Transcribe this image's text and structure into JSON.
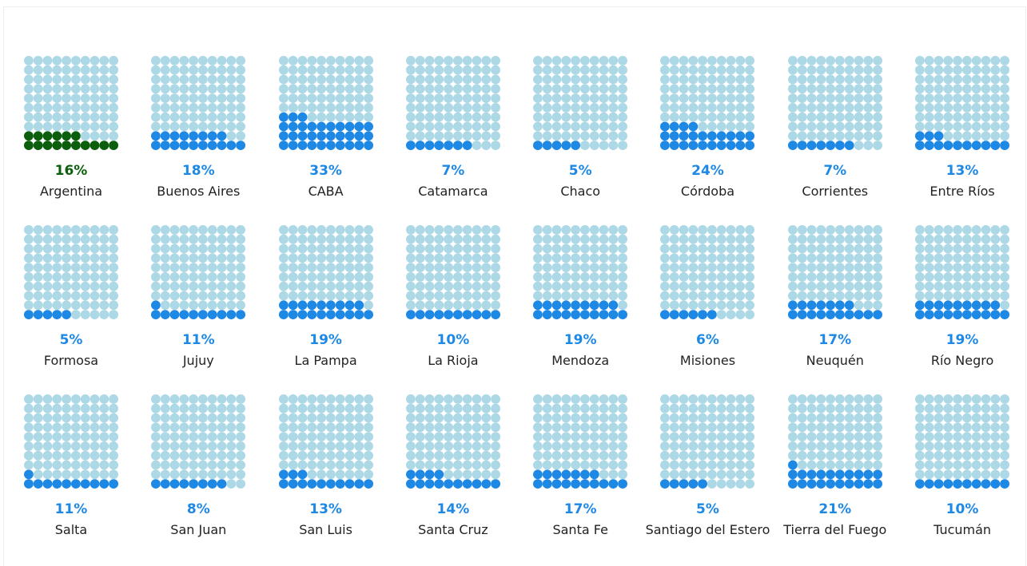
{
  "colors": {
    "empty": "#add8e6",
    "filled": "#1e88e5",
    "national": "#0b5e0b"
  },
  "chart_data": {
    "type": "waffle",
    "units_per_grid": 100,
    "items": [
      {
        "name": "Argentina",
        "value": 16,
        "label": "16%",
        "highlight": true
      },
      {
        "name": "Buenos Aires",
        "value": 18,
        "label": "18%"
      },
      {
        "name": "CABA",
        "value": 33,
        "label": "33%"
      },
      {
        "name": "Catamarca",
        "value": 7,
        "label": "7%"
      },
      {
        "name": "Chaco",
        "value": 5,
        "label": "5%"
      },
      {
        "name": "Córdoba",
        "value": 24,
        "label": "24%"
      },
      {
        "name": "Corrientes",
        "value": 7,
        "label": "7%"
      },
      {
        "name": "Entre Ríos",
        "value": 13,
        "label": "13%"
      },
      {
        "name": "Formosa",
        "value": 5,
        "label": "5%"
      },
      {
        "name": "Jujuy",
        "value": 11,
        "label": "11%"
      },
      {
        "name": "La Pampa",
        "value": 19,
        "label": "19%"
      },
      {
        "name": "La Rioja",
        "value": 10,
        "label": "10%"
      },
      {
        "name": "Mendoza",
        "value": 19,
        "label": "19%"
      },
      {
        "name": "Misiones",
        "value": 6,
        "label": "6%"
      },
      {
        "name": "Neuquén",
        "value": 17,
        "label": "17%"
      },
      {
        "name": "Río Negro",
        "value": 19,
        "label": "19%"
      },
      {
        "name": "Salta",
        "value": 11,
        "label": "11%"
      },
      {
        "name": "San Juan",
        "value": 8,
        "label": "8%"
      },
      {
        "name": "San Luis",
        "value": 13,
        "label": "13%"
      },
      {
        "name": "Santa Cruz",
        "value": 14,
        "label": "14%"
      },
      {
        "name": "Santa Fe",
        "value": 17,
        "label": "17%"
      },
      {
        "name": "Santiago del Estero",
        "value": 5,
        "label": "5%"
      },
      {
        "name": "Tierra del Fuego",
        "value": 21,
        "label": "21%"
      },
      {
        "name": "Tucumán",
        "value": 10,
        "label": "10%"
      }
    ]
  }
}
